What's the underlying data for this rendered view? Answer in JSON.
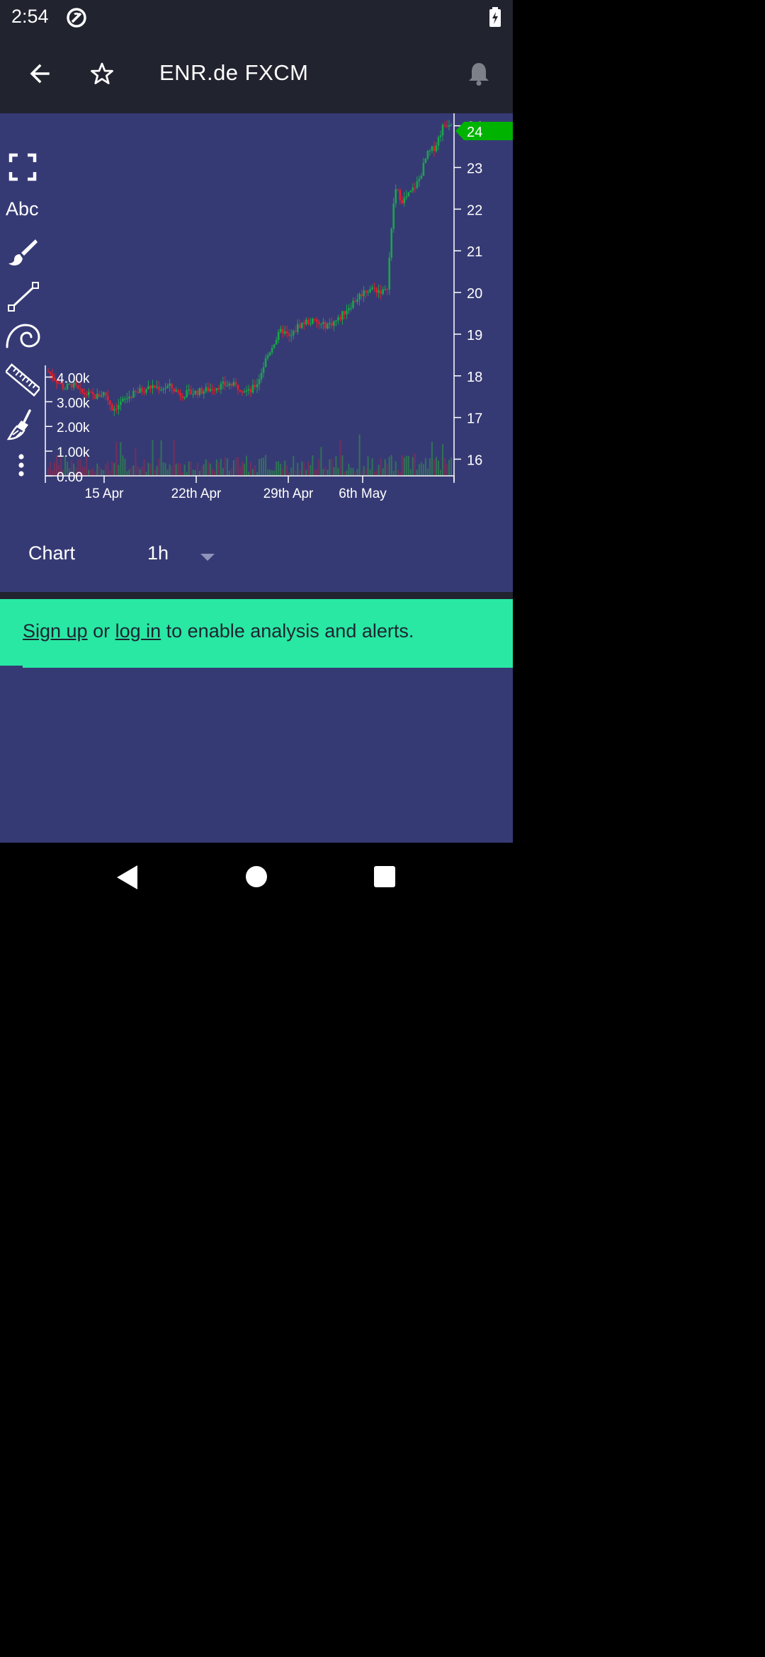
{
  "status_bar": {
    "time": "2:54",
    "icons": [
      "sync-icon",
      "battery-charging-icon"
    ]
  },
  "header": {
    "title": "ENR.de FXCM",
    "back_icon": "back-arrow-icon",
    "favorite_icon": "star-outline-icon",
    "alert_icon": "bell-icon"
  },
  "toolbar": {
    "items": [
      {
        "icon": "fullscreen-icon"
      },
      {
        "icon": "text-tool-icon",
        "label": "Abc"
      },
      {
        "icon": "brush-icon"
      },
      {
        "icon": "line-tool-icon"
      },
      {
        "icon": "fibonacci-spiral-icon"
      },
      {
        "icon": "ruler-icon"
      },
      {
        "icon": "broom-icon"
      },
      {
        "icon": "more-vertical-icon"
      }
    ]
  },
  "chart_data": {
    "type": "candlestick",
    "price_axis": {
      "ticks": [
        "24",
        "23",
        "22",
        "21",
        "20",
        "19",
        "18",
        "17",
        "16"
      ],
      "range": [
        15.6,
        24.3
      ]
    },
    "current_price_label": "24",
    "volume_axis": {
      "ticks": [
        "4.00k",
        "3.00k",
        "2.00k",
        "1.00k",
        "0.00"
      ],
      "range": [
        0,
        4300
      ]
    },
    "x_ticks": [
      "15 Apr",
      "22th Apr",
      "29th Apr",
      "6th May"
    ],
    "price_path_points": [
      [
        0,
        18.1
      ],
      [
        0.02,
        17.9
      ],
      [
        0.04,
        17.7
      ],
      [
        0.06,
        17.8
      ],
      [
        0.08,
        17.6
      ],
      [
        0.1,
        17.55
      ],
      [
        0.12,
        17.5
      ],
      [
        0.14,
        17.6
      ],
      [
        0.16,
        17.2
      ],
      [
        0.18,
        17.35
      ],
      [
        0.2,
        17.5
      ],
      [
        0.23,
        17.65
      ],
      [
        0.26,
        17.75
      ],
      [
        0.28,
        17.7
      ],
      [
        0.3,
        17.75
      ],
      [
        0.33,
        17.55
      ],
      [
        0.36,
        17.6
      ],
      [
        0.39,
        17.65
      ],
      [
        0.42,
        17.75
      ],
      [
        0.45,
        17.8
      ],
      [
        0.48,
        17.7
      ],
      [
        0.5,
        17.6
      ],
      [
        0.52,
        17.85
      ],
      [
        0.54,
        18.4
      ],
      [
        0.56,
        18.8
      ],
      [
        0.58,
        19.1
      ],
      [
        0.6,
        18.9
      ],
      [
        0.62,
        19.2
      ],
      [
        0.64,
        19.3
      ],
      [
        0.66,
        19.3
      ],
      [
        0.68,
        19.2
      ],
      [
        0.7,
        19.25
      ],
      [
        0.72,
        19.35
      ],
      [
        0.74,
        19.6
      ],
      [
        0.76,
        19.8
      ],
      [
        0.78,
        20.0
      ],
      [
        0.8,
        20.1
      ],
      [
        0.82,
        20.05
      ],
      [
        0.84,
        20.0
      ],
      [
        0.86,
        22.5
      ],
      [
        0.88,
        22.2
      ],
      [
        0.9,
        22.4
      ],
      [
        0.92,
        22.7
      ],
      [
        0.94,
        23.3
      ],
      [
        0.96,
        23.5
      ],
      [
        0.98,
        24.0
      ],
      [
        1.0,
        24.1
      ]
    ],
    "volume_hint": "volume bars shown under candles, mostly 0.2k–1.5k with spikes up to ~2k"
  },
  "controls": {
    "chart_label": "Chart",
    "interval_value": "1h",
    "dropdown_icon": "dropdown-caret-icon"
  },
  "banner": {
    "signup": "Sign up",
    "or": " or ",
    "login": "log in",
    "rest": " to enable analysis and alerts."
  },
  "navigation": {
    "back": "nav-back-icon",
    "home": "nav-home-icon",
    "recents": "nav-recents-icon"
  }
}
